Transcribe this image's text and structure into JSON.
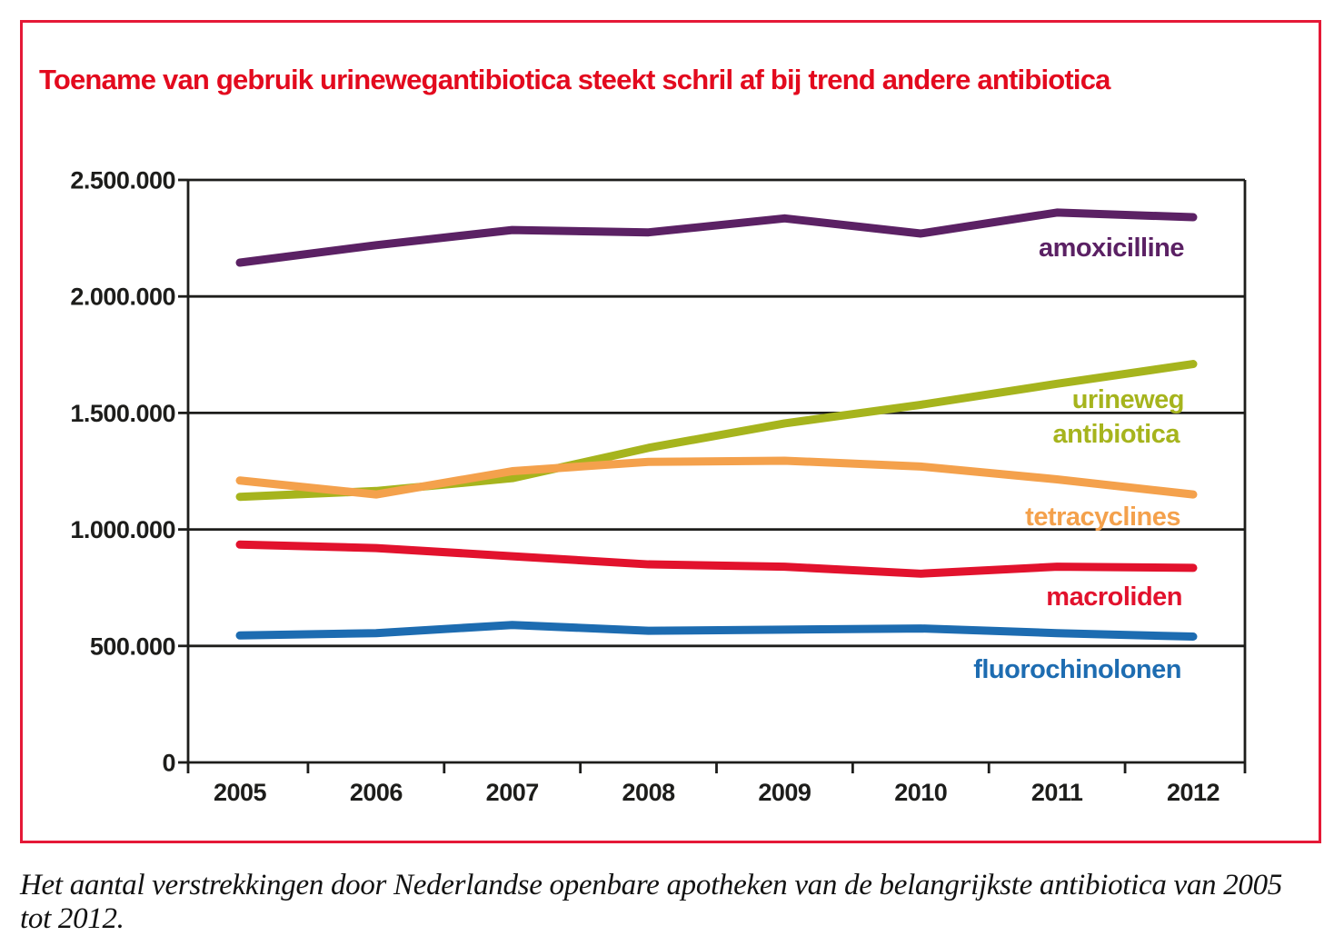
{
  "title": "Toename van gebruik urinewegantibiotica steekt schril af bij trend andere antibiotica",
  "caption": "Het aantal verstrekkingen door Nederlandse openbare apotheken van de belangrijkste antibiotica van 2005 tot 2012.",
  "colors": {
    "title_red": "#e30a1e",
    "border_red": "#e51937",
    "axis_black": "#1d1d1b"
  },
  "chart_data": {
    "type": "line",
    "x": [
      "2005",
      "2006",
      "2007",
      "2008",
      "2009",
      "2010",
      "2011",
      "2012"
    ],
    "ylim": [
      0,
      2500000
    ],
    "ytick_interval": 500000,
    "ytick_labels": [
      "0",
      "500.000",
      "1.000.000",
      "1.500.000",
      "2.000.000",
      "2.500.000"
    ],
    "grid": "horizontal gridlines at each 500.000",
    "legend_position": "labels inline at right of plot",
    "series": [
      {
        "name": "amoxicilline",
        "label_lines": [
          "amoxicilline"
        ],
        "color": "#5b2164",
        "values": [
          2145000,
          2220000,
          2285000,
          2275000,
          2335000,
          2270000,
          2360000,
          2340000
        ]
      },
      {
        "name": "urineweg antibiotica",
        "label_lines": [
          "urineweg",
          "antibiotica"
        ],
        "color": "#a6b41d",
        "values": [
          1140000,
          1165000,
          1220000,
          1350000,
          1455000,
          1535000,
          1625000,
          1710000
        ]
      },
      {
        "name": "tetracyclines",
        "label_lines": [
          "tetracyclines"
        ],
        "color": "#f4a14c",
        "values": [
          1210000,
          1150000,
          1250000,
          1290000,
          1295000,
          1270000,
          1215000,
          1150000
        ]
      },
      {
        "name": "macroliden",
        "label_lines": [
          "macroliden"
        ],
        "color": "#e2122d",
        "values": [
          935000,
          920000,
          885000,
          850000,
          840000,
          810000,
          840000,
          835000
        ]
      },
      {
        "name": "fluorochinolonen",
        "label_lines": [
          "fluorochinolonen"
        ],
        "color": "#1d6cb1",
        "values": [
          545000,
          555000,
          590000,
          565000,
          570000,
          575000,
          555000,
          540000
        ]
      }
    ]
  }
}
